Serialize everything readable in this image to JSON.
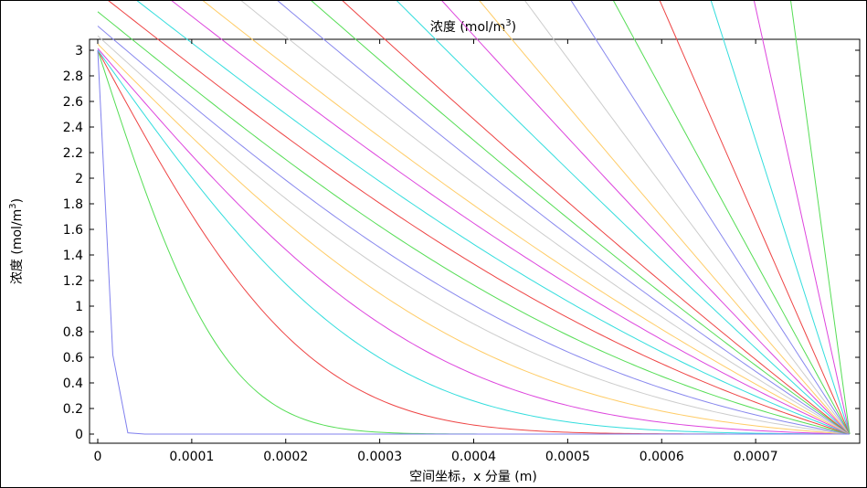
{
  "chart_data": {
    "type": "line",
    "title": "浓度 (mol/m",
    "title_sup": "3",
    "title_end": ")",
    "xlabel": "空间坐标，x 分量 (m)",
    "ylabel": "浓度 (mol/m",
    "ylabel_sup": "3",
    "ylabel_end": ")",
    "xlim": [
      0,
      0.0008
    ],
    "ylim": [
      0,
      3
    ],
    "x_ticks": [
      "0",
      "0.0001",
      "0.0002",
      "0.0003",
      "0.0004",
      "0.0005",
      "0.0006",
      "0.0007"
    ],
    "y_ticks": [
      "0",
      "0.2",
      "0.4",
      "0.6",
      "0.8",
      "1",
      "1.2",
      "1.4",
      "1.6",
      "1.8",
      "2",
      "2.2",
      "2.4",
      "2.6",
      "2.8",
      "3"
    ],
    "grid": false,
    "legend": "none",
    "L": 0.0008,
    "C0": 3,
    "first_curve": {
      "x": [
        0,
        1.6e-05,
        3.2e-05,
        5e-05,
        0.0001,
        0.0002,
        0.0003,
        0.0004,
        0.0005,
        0.0006,
        0.0007,
        0.0008
      ],
      "y": [
        3,
        0.62,
        0.01,
        0,
        0,
        0,
        0,
        0,
        0,
        0,
        0,
        0
      ],
      "color": "#8080ee"
    },
    "curves_depth": [
      0.00015,
      0.00025,
      0.00033,
      0.0004,
      0.00047,
      0.00054,
      0.0006,
      0.00067,
      0.00075,
      0.00083,
      0.00092,
      0.001,
      0.0011,
      0.0012,
      0.0013,
      0.0014,
      0.0016,
      0.0018,
      0.002,
      0.0023,
      0.0027,
      0.0032,
      0.004,
      0.0055,
      0.008,
      0.013
    ],
    "colors": [
      "#55dd55",
      "#ee4444",
      "#33dddd",
      "#dd44dd",
      "#ffcc66",
      "#cccccc",
      "#8888ee",
      "#55dd55",
      "#ee4444",
      "#33dddd",
      "#dd44dd",
      "#ffcc66",
      "#cccccc",
      "#8888ee",
      "#55dd55",
      "#ee4444",
      "#33dddd",
      "#dd44dd",
      "#ffcc66",
      "#cccccc",
      "#8888ee",
      "#55dd55",
      "#ee4444",
      "#33dddd",
      "#dd44dd",
      "#55dd55"
    ]
  }
}
